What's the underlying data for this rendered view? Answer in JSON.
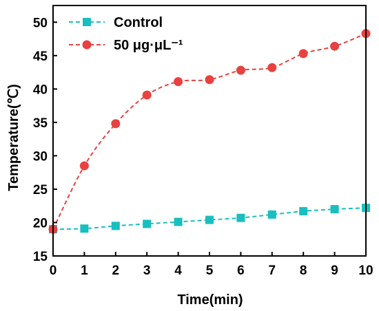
{
  "chart_data": {
    "type": "line",
    "xlabel": "Time(min)",
    "ylabel": "Temperature(℃)",
    "xlim": [
      0,
      10
    ],
    "ylim": [
      15,
      52.5
    ],
    "xticks": [
      0,
      1,
      2,
      3,
      4,
      5,
      6,
      7,
      8,
      9,
      10
    ],
    "yticks": [
      15,
      20,
      25,
      30,
      35,
      40,
      45,
      50
    ],
    "grid": false,
    "legend_position": "top-left",
    "x": [
      0,
      1,
      2,
      3,
      4,
      5,
      6,
      7,
      8,
      9,
      10
    ],
    "series": [
      {
        "name": "Control",
        "marker": "square",
        "line_style": "dashed",
        "color": "#19bfbf",
        "values": [
          19.0,
          19.1,
          19.5,
          19.8,
          20.1,
          20.4,
          20.7,
          21.2,
          21.7,
          22.0,
          22.2
        ]
      },
      {
        "name": "50 μg·μL⁻¹",
        "marker": "circle",
        "line_style": "dashed",
        "color": "#e8413f",
        "values": [
          19.0,
          28.5,
          34.8,
          39.1,
          41.1,
          41.4,
          42.8,
          43.2,
          45.3,
          46.4,
          48.3
        ]
      }
    ]
  }
}
